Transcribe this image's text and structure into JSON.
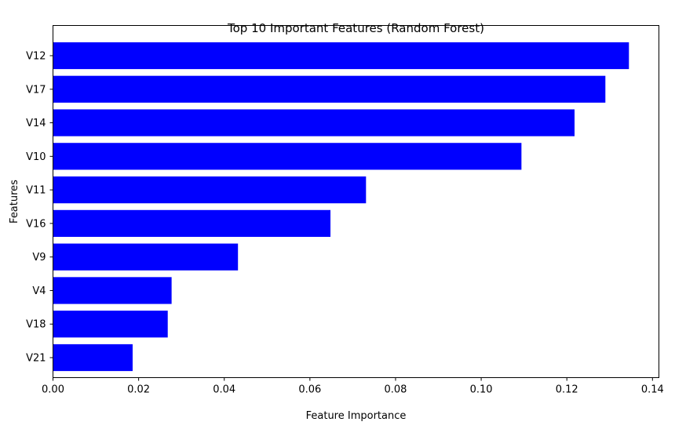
{
  "chart_data": {
    "type": "bar",
    "orientation": "horizontal",
    "title": "Top 10 Important Features (Random Forest)",
    "xlabel": "Feature Importance",
    "ylabel": "Features",
    "categories": [
      "V12",
      "V17",
      "V14",
      "V10",
      "V11",
      "V16",
      "V9",
      "V4",
      "V18",
      "V21"
    ],
    "values": [
      0.1345,
      0.129,
      0.1218,
      0.1094,
      0.0731,
      0.0648,
      0.0432,
      0.0277,
      0.0268,
      0.0186
    ],
    "xlim": [
      0,
      0.1415
    ],
    "xticks": [
      "0.00",
      "0.02",
      "0.04",
      "0.06",
      "0.08",
      "0.10",
      "0.12",
      "0.14"
    ],
    "xtick_values": [
      0,
      0.02,
      0.04,
      0.06,
      0.08,
      0.1,
      0.12,
      0.14
    ],
    "bar_color": "#0000ff",
    "grid": false,
    "legend": false
  }
}
